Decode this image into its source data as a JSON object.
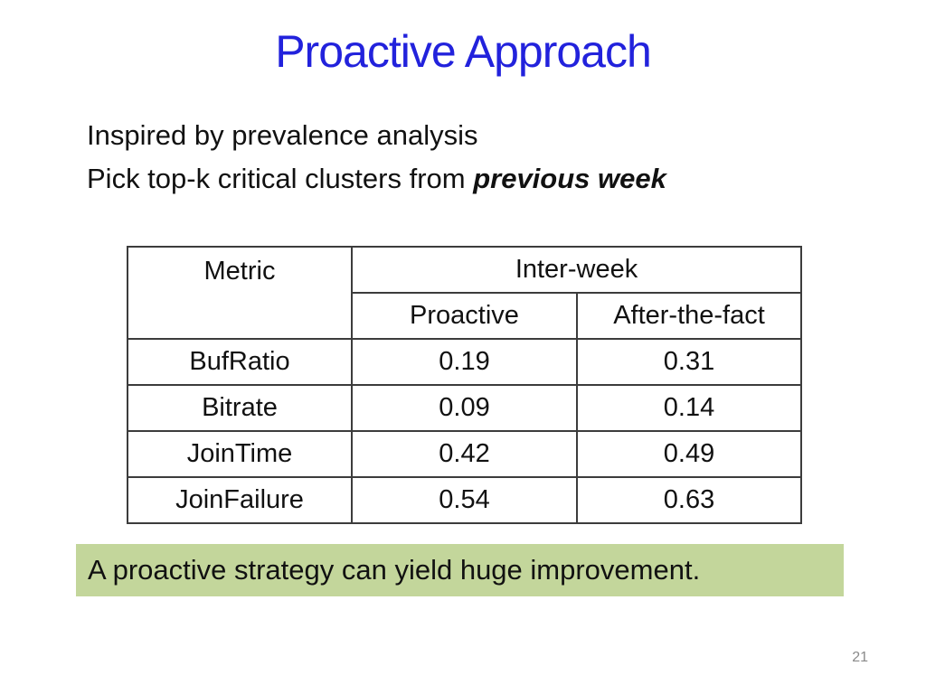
{
  "slide": {
    "title": "Proactive Approach",
    "page_number": "21"
  },
  "intro": {
    "line1": "Inspired by prevalence analysis",
    "line2_prefix": "Pick top-k critical clusters from ",
    "line2_emphasis": "previous week"
  },
  "table": {
    "header": {
      "metric": "Metric",
      "group": "Inter-week",
      "col1": "Proactive",
      "col2": "After-the-fact"
    },
    "rows": [
      {
        "metric": "BufRatio",
        "proactive": "0.19",
        "after_the_fact": "0.31"
      },
      {
        "metric": "Bitrate",
        "proactive": "0.09",
        "after_the_fact": "0.14"
      },
      {
        "metric": "JoinTime",
        "proactive": "0.42",
        "after_the_fact": "0.49"
      },
      {
        "metric": "JoinFailure",
        "proactive": "0.54",
        "after_the_fact": "0.63"
      }
    ]
  },
  "callout": {
    "text": "A proactive strategy can yield huge improvement."
  },
  "colors": {
    "title_blue": "#2222DC",
    "callout_green": "#C3D69B",
    "table_border": "#3C3C3C",
    "page_number_gray": "#8A8A8A"
  }
}
